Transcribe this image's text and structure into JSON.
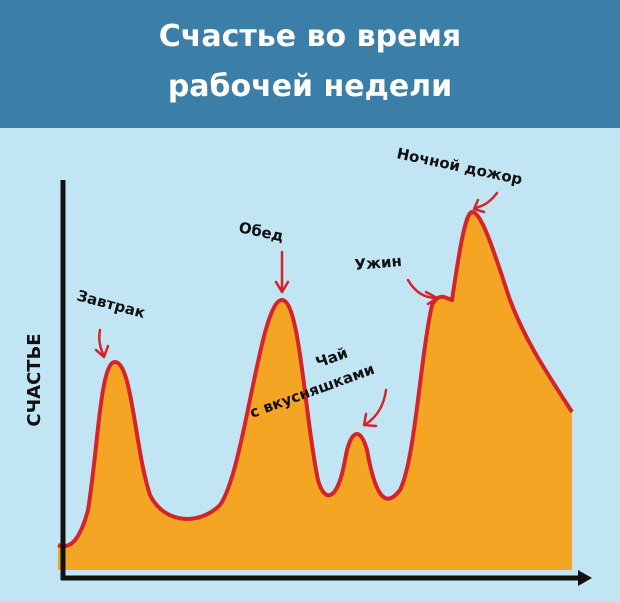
{
  "header": {
    "title": [
      "Счастье во время",
      "рабочей недели"
    ]
  },
  "y_axis_label": "СЧАСТЬЕ",
  "annotations": [
    "Завтрак",
    "Обед",
    "Чай",
    "с вкусняшками",
    "Ужин",
    "Ночной дожор"
  ]
}
